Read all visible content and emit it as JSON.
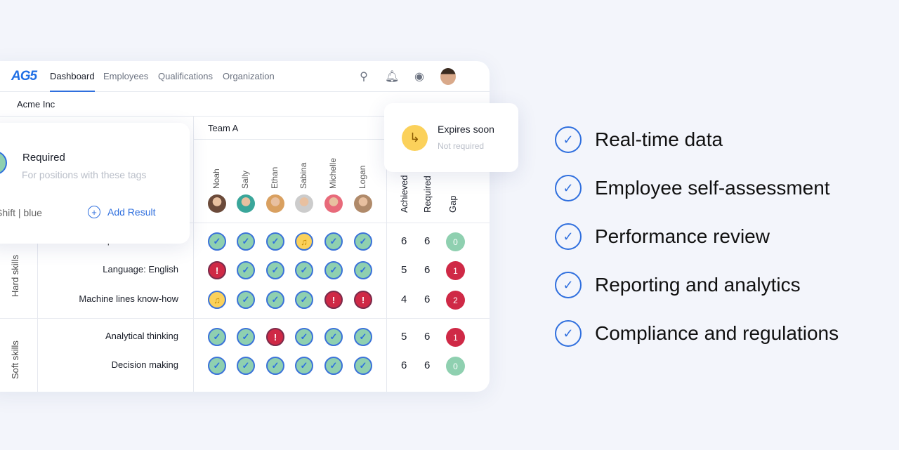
{
  "nav": {
    "logo": "AG5",
    "tabs": [
      "Dashboard",
      "Employees",
      "Qualifications",
      "Organization"
    ],
    "active_tab": "Dashboard",
    "icons": [
      "user-search-icon",
      "bell-icon",
      "eye-icon",
      "avatar"
    ]
  },
  "company": "Acme Inc",
  "team": "Team A",
  "people": [
    "Noah",
    "Sally",
    "Ethan",
    "Sabina",
    "Michelle",
    "Logan"
  ],
  "columns": {
    "achieved": "Achieved",
    "required": "Required",
    "gap": "Gap"
  },
  "groups": [
    "Hard skills",
    "Soft skills"
  ],
  "skills": [
    {
      "name": "Operate machine A",
      "statuses": [
        "ok",
        "ok",
        "ok",
        "warn",
        "ok",
        "ok"
      ],
      "achieved": "6",
      "required": "6",
      "gap": "0"
    },
    {
      "name": "Language: English",
      "statuses": [
        "err",
        "ok",
        "ok",
        "ok",
        "ok",
        "ok"
      ],
      "achieved": "5",
      "required": "6",
      "gap": "1"
    },
    {
      "name": "Machine lines know-how",
      "statuses": [
        "warn",
        "ok",
        "ok",
        "ok",
        "err",
        "err"
      ],
      "achieved": "4",
      "required": "6",
      "gap": "2"
    },
    {
      "name": "Analytical thinking",
      "statuses": [
        "ok",
        "ok",
        "err",
        "ok",
        "ok",
        "ok"
      ],
      "achieved": "5",
      "required": "6",
      "gap": "1"
    },
    {
      "name": "Decision making",
      "statuses": [
        "ok",
        "ok",
        "ok",
        "ok",
        "ok",
        "ok"
      ],
      "achieved": "6",
      "required": "6",
      "gap": "0"
    }
  ],
  "popup": {
    "title": "Required",
    "subtitle": "For positions with these tags",
    "tag": "Shift | blue",
    "add_label": "Add Result"
  },
  "expires": {
    "title": "Expires soon",
    "subtitle": "Not required"
  },
  "features": [
    "Real-time data",
    "Employee self-assessment",
    "Performance review",
    "Reporting and analytics",
    "Compliance and regulations"
  ],
  "colors": {
    "accent": "#2f6fde",
    "ok": "#8fd0b0",
    "warn": "#fbd15b",
    "err": "#cf2946"
  }
}
